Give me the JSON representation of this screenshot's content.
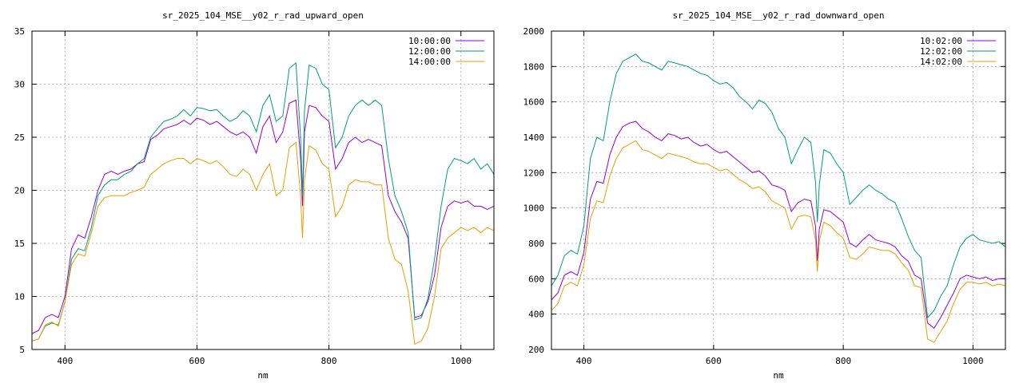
{
  "chart_data": [
    {
      "type": "line",
      "title": "sr_2025_104_MSE__y02_r_rad_upward_open",
      "xlabel": "nm",
      "ylabel": "",
      "xlim": [
        350,
        1050
      ],
      "ylim": [
        5,
        35
      ],
      "xticks": [
        400,
        600,
        800,
        1000
      ],
      "yticks": [
        5,
        10,
        15,
        20,
        25,
        30,
        35
      ],
      "grid": true,
      "legend_position": "top-right",
      "series": [
        {
          "name": "10:00:00",
          "color": "#9400d3",
          "x": [
            350,
            360,
            370,
            380,
            390,
            400,
            410,
            420,
            430,
            440,
            450,
            460,
            470,
            480,
            490,
            500,
            510,
            520,
            530,
            540,
            550,
            560,
            570,
            580,
            590,
            600,
            610,
            620,
            630,
            640,
            650,
            660,
            670,
            680,
            690,
            700,
            710,
            720,
            730,
            740,
            750,
            757,
            760,
            763,
            770,
            780,
            790,
            800,
            810,
            820,
            830,
            840,
            850,
            860,
            870,
            880,
            890,
            900,
            910,
            920,
            930,
            940,
            950,
            960,
            970,
            980,
            990,
            1000,
            1010,
            1020,
            1030,
            1040,
            1050
          ],
          "y": [
            6.5,
            6.8,
            8.0,
            8.3,
            8.0,
            10.0,
            14.5,
            15.8,
            15.5,
            17.5,
            20.0,
            21.5,
            21.8,
            21.5,
            21.8,
            22.0,
            22.5,
            22.7,
            24.8,
            25.2,
            25.8,
            26.0,
            26.2,
            26.6,
            26.2,
            26.8,
            26.6,
            26.2,
            26.5,
            26.0,
            25.5,
            25.2,
            25.5,
            25.0,
            23.5,
            26.0,
            27.0,
            24.5,
            25.5,
            28.2,
            28.5,
            23.0,
            18.5,
            25.5,
            28.0,
            27.8,
            27.0,
            26.5,
            22.0,
            23.0,
            24.5,
            25.0,
            24.5,
            24.8,
            24.5,
            24.2,
            19.5,
            18.0,
            17.0,
            15.5,
            8.0,
            8.2,
            9.5,
            12.0,
            16.5,
            18.5,
            19.0,
            18.8,
            19.0,
            18.5,
            18.5,
            18.2,
            18.5
          ]
        },
        {
          "name": "12:00:00",
          "color": "#009e73",
          "x": [
            350,
            360,
            370,
            380,
            390,
            400,
            410,
            420,
            430,
            440,
            450,
            460,
            470,
            480,
            490,
            500,
            510,
            520,
            530,
            540,
            550,
            560,
            570,
            580,
            590,
            600,
            610,
            620,
            630,
            640,
            650,
            660,
            670,
            680,
            690,
            700,
            710,
            720,
            730,
            740,
            750,
            757,
            760,
            763,
            770,
            780,
            790,
            800,
            810,
            820,
            830,
            840,
            850,
            860,
            870,
            880,
            890,
            900,
            910,
            920,
            930,
            940,
            950,
            960,
            970,
            980,
            990,
            1000,
            1010,
            1020,
            1030,
            1040,
            1050
          ],
          "y": [
            5.8,
            6.0,
            7.2,
            7.5,
            7.3,
            9.5,
            13.5,
            14.5,
            14.3,
            16.5,
            19.5,
            20.5,
            21.0,
            21.0,
            21.5,
            21.8,
            22.5,
            23.0,
            25.0,
            25.8,
            26.5,
            26.7,
            27.0,
            27.6,
            27.0,
            27.8,
            27.7,
            27.5,
            27.6,
            27.0,
            26.5,
            26.8,
            27.5,
            27.0,
            25.5,
            28.0,
            29.0,
            26.5,
            27.0,
            31.5,
            32.0,
            25.0,
            19.5,
            27.5,
            31.8,
            31.5,
            30.0,
            29.5,
            24.0,
            25.0,
            27.0,
            28.0,
            28.5,
            28.0,
            28.5,
            28.0,
            23.0,
            19.5,
            18.0,
            16.0,
            7.8,
            8.0,
            9.8,
            13.5,
            18.5,
            22.0,
            23.0,
            22.8,
            22.5,
            23.0,
            22.0,
            22.5,
            21.5
          ]
        },
        {
          "name": "14:00:00",
          "color": "#e69f00",
          "x": [
            350,
            360,
            370,
            380,
            390,
            400,
            410,
            420,
            430,
            440,
            450,
            460,
            470,
            480,
            490,
            500,
            510,
            520,
            530,
            540,
            550,
            560,
            570,
            580,
            590,
            600,
            610,
            620,
            630,
            640,
            650,
            660,
            670,
            680,
            690,
            700,
            710,
            720,
            730,
            740,
            750,
            757,
            760,
            763,
            770,
            780,
            790,
            800,
            810,
            820,
            830,
            840,
            850,
            860,
            870,
            880,
            890,
            900,
            910,
            920,
            930,
            940,
            950,
            960,
            970,
            980,
            990,
            1000,
            1010,
            1020,
            1030,
            1040,
            1050
          ],
          "y": [
            5.8,
            6.0,
            7.3,
            7.6,
            7.2,
            9.5,
            13.0,
            14.0,
            13.8,
            16.0,
            18.5,
            19.3,
            19.5,
            19.5,
            19.5,
            19.8,
            20.0,
            20.3,
            21.5,
            22.0,
            22.5,
            22.8,
            23.0,
            23.0,
            22.5,
            23.0,
            22.8,
            22.5,
            22.8,
            22.2,
            21.5,
            21.3,
            22.0,
            21.5,
            20.0,
            21.5,
            22.5,
            19.5,
            20.0,
            24.0,
            24.5,
            19.5,
            15.5,
            21.0,
            24.2,
            23.8,
            22.5,
            22.0,
            17.5,
            18.5,
            20.5,
            21.0,
            20.8,
            20.8,
            20.5,
            20.5,
            15.5,
            13.5,
            13.0,
            10.5,
            5.5,
            5.8,
            7.0,
            10.0,
            14.5,
            15.5,
            16.0,
            16.5,
            16.2,
            16.5,
            16.0,
            16.5,
            16.2
          ]
        }
      ]
    },
    {
      "type": "line",
      "title": "sr_2025_104_MSE__y02_r_rad_downward_open",
      "xlabel": "nm",
      "ylabel": "",
      "xlim": [
        350,
        1050
      ],
      "ylim": [
        200,
        2000
      ],
      "xticks": [
        400,
        600,
        800,
        1000
      ],
      "yticks": [
        200,
        400,
        600,
        800,
        1000,
        1200,
        1400,
        1600,
        1800,
        2000
      ],
      "grid": true,
      "legend_position": "top-right",
      "series": [
        {
          "name": "10:02:00",
          "color": "#9400d3",
          "x": [
            350,
            360,
            370,
            380,
            390,
            400,
            410,
            420,
            430,
            440,
            450,
            460,
            470,
            480,
            490,
            500,
            510,
            520,
            530,
            540,
            550,
            560,
            570,
            580,
            590,
            600,
            610,
            620,
            630,
            640,
            650,
            660,
            670,
            680,
            690,
            700,
            710,
            720,
            730,
            740,
            750,
            757,
            760,
            763,
            770,
            780,
            790,
            800,
            810,
            820,
            830,
            840,
            850,
            860,
            870,
            880,
            890,
            900,
            910,
            920,
            930,
            940,
            950,
            960,
            970,
            980,
            990,
            1000,
            1010,
            1020,
            1030,
            1040,
            1050
          ],
          "y": [
            480,
            520,
            620,
            640,
            620,
            750,
            1050,
            1150,
            1140,
            1300,
            1400,
            1460,
            1480,
            1490,
            1450,
            1430,
            1400,
            1380,
            1420,
            1410,
            1390,
            1400,
            1370,
            1350,
            1360,
            1330,
            1310,
            1320,
            1290,
            1260,
            1230,
            1200,
            1210,
            1180,
            1130,
            1120,
            1100,
            980,
            1030,
            1050,
            1040,
            900,
            700,
            880,
            990,
            980,
            950,
            920,
            800,
            780,
            820,
            850,
            820,
            810,
            800,
            780,
            730,
            700,
            620,
            600,
            350,
            320,
            380,
            450,
            520,
            600,
            620,
            610,
            600,
            610,
            590,
            600,
            600
          ]
        },
        {
          "name": "12:02:00",
          "color": "#009e73",
          "x": [
            350,
            360,
            370,
            380,
            390,
            400,
            410,
            420,
            430,
            440,
            450,
            460,
            470,
            480,
            490,
            500,
            510,
            520,
            530,
            540,
            550,
            560,
            570,
            580,
            590,
            600,
            610,
            620,
            630,
            640,
            650,
            660,
            670,
            680,
            690,
            700,
            710,
            720,
            730,
            740,
            750,
            757,
            760,
            763,
            770,
            780,
            790,
            800,
            810,
            820,
            830,
            840,
            850,
            860,
            870,
            880,
            890,
            900,
            910,
            920,
            930,
            940,
            950,
            960,
            970,
            980,
            990,
            1000,
            1010,
            1020,
            1030,
            1040,
            1050
          ],
          "y": [
            560,
            620,
            730,
            760,
            740,
            900,
            1280,
            1400,
            1380,
            1600,
            1760,
            1830,
            1850,
            1870,
            1830,
            1820,
            1800,
            1780,
            1830,
            1820,
            1810,
            1800,
            1780,
            1760,
            1750,
            1720,
            1700,
            1710,
            1680,
            1630,
            1600,
            1560,
            1610,
            1590,
            1540,
            1450,
            1400,
            1250,
            1330,
            1400,
            1370,
            1150,
            920,
            1130,
            1330,
            1310,
            1250,
            1200,
            1020,
            1060,
            1100,
            1130,
            1100,
            1080,
            1050,
            1030,
            940,
            840,
            760,
            720,
            380,
            420,
            500,
            560,
            680,
            780,
            830,
            850,
            820,
            810,
            800,
            810,
            780
          ]
        },
        {
          "name": "14:02:00",
          "color": "#e69f00",
          "x": [
            350,
            360,
            370,
            380,
            390,
            400,
            410,
            420,
            430,
            440,
            450,
            460,
            470,
            480,
            490,
            500,
            510,
            520,
            530,
            540,
            550,
            560,
            570,
            580,
            590,
            600,
            610,
            620,
            630,
            640,
            650,
            660,
            670,
            680,
            690,
            700,
            710,
            720,
            730,
            740,
            750,
            757,
            760,
            763,
            770,
            780,
            790,
            800,
            810,
            820,
            830,
            840,
            850,
            860,
            870,
            880,
            890,
            900,
            910,
            920,
            930,
            940,
            950,
            960,
            970,
            980,
            990,
            1000,
            1010,
            1020,
            1030,
            1040,
            1050
          ],
          "y": [
            420,
            460,
            560,
            580,
            560,
            680,
            940,
            1040,
            1030,
            1180,
            1280,
            1340,
            1360,
            1380,
            1330,
            1320,
            1300,
            1280,
            1310,
            1300,
            1290,
            1280,
            1260,
            1250,
            1250,
            1230,
            1210,
            1220,
            1190,
            1160,
            1140,
            1110,
            1120,
            1090,
            1040,
            1020,
            1000,
            880,
            950,
            960,
            950,
            820,
            640,
            810,
            920,
            900,
            860,
            830,
            720,
            710,
            740,
            780,
            770,
            760,
            760,
            740,
            690,
            650,
            560,
            550,
            260,
            240,
            300,
            360,
            460,
            540,
            580,
            580,
            570,
            580,
            560,
            570,
            560
          ]
        }
      ]
    }
  ]
}
